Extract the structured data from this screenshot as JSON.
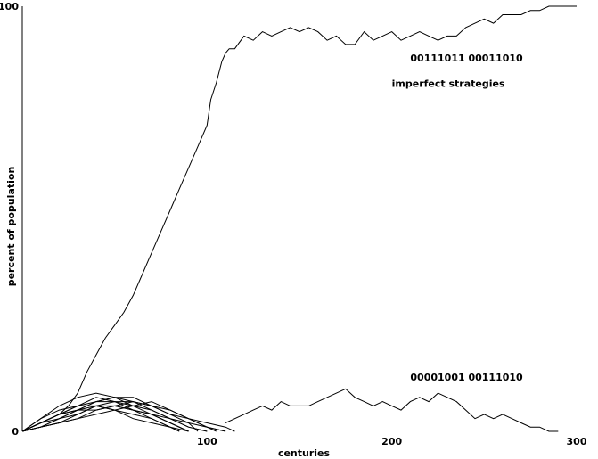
{
  "chart_data": {
    "type": "line",
    "xlabel": "centuries",
    "ylabel": "percent of population",
    "xlim": [
      0,
      300
    ],
    "ylim": [
      0,
      100
    ],
    "x_ticks": [
      {
        "value": 100,
        "label": "100"
      },
      {
        "value": 200,
        "label": "200"
      },
      {
        "value": 300,
        "label": "300"
      }
    ],
    "y_ticks": [
      {
        "value": 0,
        "label": "0"
      },
      {
        "value": 100,
        "label": "100"
      }
    ],
    "grid": false,
    "annotations": [
      {
        "text": "00111011 00011010",
        "x": 210,
        "y": 87
      },
      {
        "text": "imperfect strategies",
        "x": 200,
        "y": 81
      },
      {
        "text": "00001001 00111010",
        "x": 210,
        "y": 12
      }
    ],
    "series": [
      {
        "points": [
          [
            0,
            0
          ],
          [
            5,
            1
          ],
          [
            10,
            2
          ],
          [
            15,
            3
          ],
          [
            20,
            4
          ],
          [
            25,
            6
          ],
          [
            30,
            9
          ],
          [
            35,
            14
          ],
          [
            40,
            18
          ],
          [
            45,
            22
          ],
          [
            50,
            25
          ],
          [
            55,
            28
          ],
          [
            60,
            32
          ],
          [
            65,
            37
          ],
          [
            70,
            42
          ],
          [
            75,
            47
          ],
          [
            80,
            52
          ],
          [
            85,
            57
          ],
          [
            90,
            62
          ],
          [
            95,
            67
          ],
          [
            100,
            72
          ],
          [
            102,
            78
          ],
          [
            105,
            82
          ],
          [
            108,
            87
          ],
          [
            110,
            89
          ],
          [
            112,
            90
          ],
          [
            115,
            90
          ],
          [
            120,
            93
          ],
          [
            125,
            92
          ],
          [
            130,
            94
          ],
          [
            135,
            93
          ],
          [
            140,
            94
          ],
          [
            145,
            95
          ],
          [
            150,
            94
          ],
          [
            155,
            95
          ],
          [
            160,
            94
          ],
          [
            165,
            92
          ],
          [
            170,
            93
          ],
          [
            175,
            91
          ],
          [
            180,
            91
          ],
          [
            185,
            94
          ],
          [
            190,
            92
          ],
          [
            195,
            93
          ],
          [
            200,
            94
          ],
          [
            205,
            92
          ],
          [
            210,
            93
          ],
          [
            215,
            94
          ],
          [
            220,
            93
          ],
          [
            225,
            92
          ],
          [
            230,
            93
          ],
          [
            235,
            93
          ],
          [
            240,
            95
          ],
          [
            245,
            96
          ],
          [
            250,
            97
          ],
          [
            255,
            96
          ],
          [
            260,
            98
          ],
          [
            265,
            98
          ],
          [
            270,
            98
          ],
          [
            275,
            99
          ],
          [
            280,
            99
          ],
          [
            285,
            100
          ],
          [
            290,
            100
          ],
          [
            295,
            100
          ],
          [
            300,
            100
          ]
        ]
      },
      {
        "points": [
          [
            110,
            2
          ],
          [
            120,
            4
          ],
          [
            125,
            5
          ],
          [
            130,
            6
          ],
          [
            135,
            5
          ],
          [
            140,
            7
          ],
          [
            145,
            6
          ],
          [
            150,
            6
          ],
          [
            155,
            6
          ],
          [
            160,
            7
          ],
          [
            165,
            8
          ],
          [
            170,
            9
          ],
          [
            175,
            10
          ],
          [
            180,
            8
          ],
          [
            185,
            7
          ],
          [
            190,
            6
          ],
          [
            195,
            7
          ],
          [
            200,
            6
          ],
          [
            205,
            5
          ],
          [
            210,
            7
          ],
          [
            215,
            8
          ],
          [
            220,
            7
          ],
          [
            225,
            9
          ],
          [
            230,
            8
          ],
          [
            235,
            7
          ],
          [
            240,
            5
          ],
          [
            245,
            3
          ],
          [
            250,
            4
          ],
          [
            255,
            3
          ],
          [
            260,
            4
          ],
          [
            265,
            3
          ],
          [
            270,
            2
          ],
          [
            275,
            1
          ],
          [
            280,
            1
          ],
          [
            285,
            0
          ],
          [
            290,
            0
          ]
        ]
      },
      {
        "points": [
          [
            0,
            0
          ],
          [
            10,
            2
          ],
          [
            20,
            4
          ],
          [
            30,
            6
          ],
          [
            40,
            8
          ],
          [
            50,
            7
          ],
          [
            60,
            6
          ],
          [
            70,
            5
          ],
          [
            80,
            3
          ],
          [
            90,
            2
          ],
          [
            100,
            1
          ],
          [
            110,
            0
          ]
        ]
      },
      {
        "points": [
          [
            0,
            0
          ],
          [
            10,
            3
          ],
          [
            20,
            6
          ],
          [
            30,
            8
          ],
          [
            40,
            9
          ],
          [
            50,
            8
          ],
          [
            60,
            7
          ],
          [
            70,
            5
          ],
          [
            80,
            3
          ],
          [
            90,
            1
          ],
          [
            100,
            0
          ]
        ]
      },
      {
        "points": [
          [
            0,
            0
          ],
          [
            10,
            1
          ],
          [
            20,
            3
          ],
          [
            30,
            5
          ],
          [
            40,
            7
          ],
          [
            50,
            8
          ],
          [
            60,
            8
          ],
          [
            70,
            6
          ],
          [
            80,
            4
          ],
          [
            90,
            2
          ],
          [
            95,
            0
          ]
        ]
      },
      {
        "points": [
          [
            0,
            0
          ],
          [
            10,
            2
          ],
          [
            20,
            4
          ],
          [
            30,
            5
          ],
          [
            40,
            5
          ],
          [
            50,
            6
          ],
          [
            60,
            5
          ],
          [
            70,
            4
          ],
          [
            80,
            2
          ],
          [
            90,
            0
          ]
        ]
      },
      {
        "points": [
          [
            0,
            0
          ],
          [
            10,
            1
          ],
          [
            20,
            2
          ],
          [
            30,
            4
          ],
          [
            40,
            6
          ],
          [
            50,
            6
          ],
          [
            60,
            5
          ],
          [
            70,
            3
          ],
          [
            80,
            1
          ],
          [
            85,
            0
          ]
        ]
      },
      {
        "points": [
          [
            0,
            0
          ],
          [
            10,
            3
          ],
          [
            20,
            5
          ],
          [
            30,
            6
          ],
          [
            40,
            7
          ],
          [
            50,
            7
          ],
          [
            60,
            5
          ],
          [
            70,
            4
          ],
          [
            80,
            3
          ],
          [
            90,
            1
          ],
          [
            100,
            0
          ]
        ]
      },
      {
        "points": [
          [
            0,
            0
          ],
          [
            10,
            1
          ],
          [
            20,
            2
          ],
          [
            30,
            3
          ],
          [
            40,
            4
          ],
          [
            50,
            5
          ],
          [
            60,
            6
          ],
          [
            70,
            7
          ],
          [
            80,
            5
          ],
          [
            90,
            3
          ],
          [
            100,
            1
          ],
          [
            110,
            0
          ]
        ]
      },
      {
        "points": [
          [
            0,
            0
          ],
          [
            10,
            2
          ],
          [
            20,
            3
          ],
          [
            30,
            5
          ],
          [
            40,
            7
          ],
          [
            50,
            8
          ],
          [
            60,
            6
          ],
          [
            70,
            4
          ],
          [
            80,
            2
          ],
          [
            90,
            0
          ]
        ]
      },
      {
        "points": [
          [
            0,
            0
          ],
          [
            10,
            1
          ],
          [
            20,
            3
          ],
          [
            30,
            4
          ],
          [
            40,
            6
          ],
          [
            50,
            7
          ],
          [
            60,
            7
          ],
          [
            70,
            6
          ],
          [
            80,
            4
          ],
          [
            90,
            3
          ],
          [
            100,
            1
          ],
          [
            105,
            0
          ]
        ]
      },
      {
        "points": [
          [
            0,
            0
          ],
          [
            10,
            2
          ],
          [
            20,
            4
          ],
          [
            30,
            6
          ],
          [
            40,
            6
          ],
          [
            50,
            5
          ],
          [
            60,
            4
          ],
          [
            70,
            3
          ],
          [
            80,
            1
          ],
          [
            90,
            0
          ]
        ]
      },
      {
        "points": [
          [
            0,
            0
          ],
          [
            10,
            1
          ],
          [
            20,
            2
          ],
          [
            30,
            3
          ],
          [
            40,
            5
          ],
          [
            50,
            6
          ],
          [
            60,
            7
          ],
          [
            70,
            6
          ],
          [
            80,
            5
          ],
          [
            90,
            3
          ],
          [
            100,
            2
          ],
          [
            110,
            1
          ],
          [
            115,
            0
          ]
        ]
      },
      {
        "points": [
          [
            0,
            0
          ],
          [
            10,
            2
          ],
          [
            20,
            4
          ],
          [
            30,
            5
          ],
          [
            40,
            6
          ],
          [
            50,
            5
          ],
          [
            60,
            3
          ],
          [
            70,
            2
          ],
          [
            80,
            1
          ],
          [
            85,
            0
          ]
        ]
      }
    ]
  }
}
